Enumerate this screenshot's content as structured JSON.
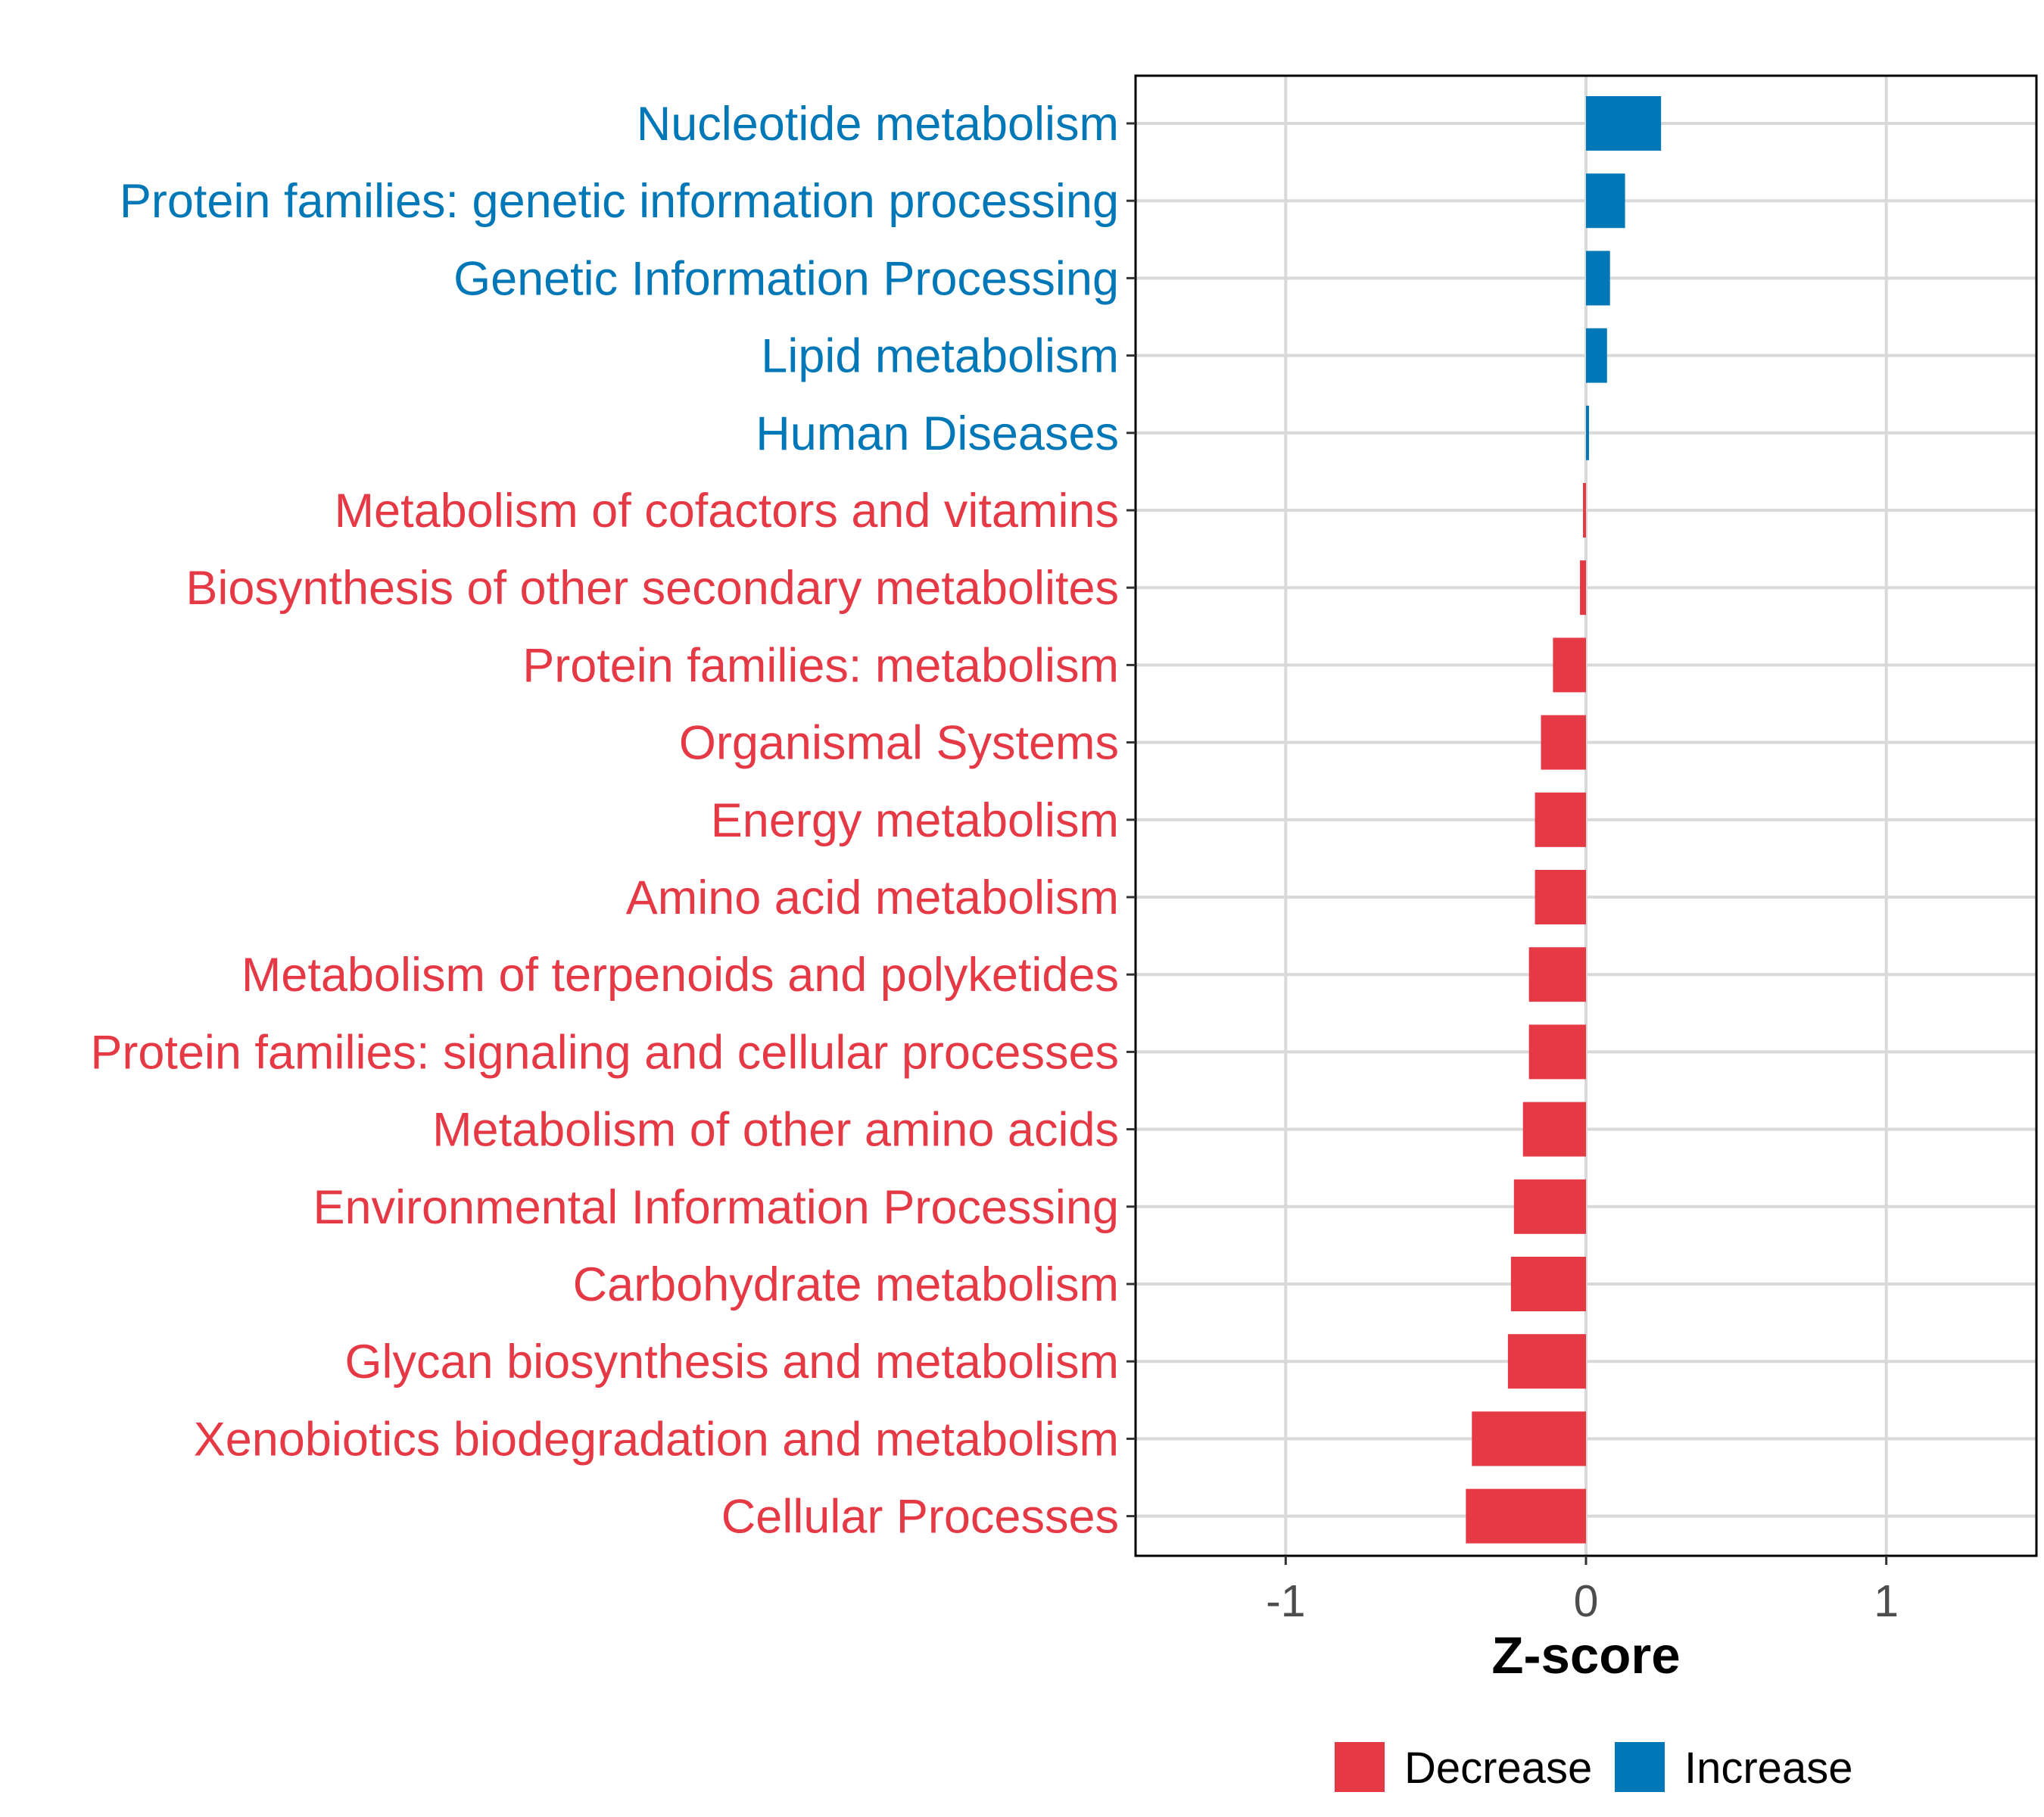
{
  "colors": {
    "decrease": "#e63946",
    "increase": "#0077b6",
    "grid": "#d9d9d9",
    "panel_border": "#000000",
    "tick_text": "#4d4d4d"
  },
  "chart_data": {
    "type": "bar",
    "orientation": "horizontal",
    "title": "",
    "xlabel": "Z-score",
    "ylabel": "",
    "xlim": [
      -1.5,
      1.5
    ],
    "xticks": [
      -1,
      0,
      1
    ],
    "xtick_labels": [
      "-1",
      "0",
      "1"
    ],
    "grid": true,
    "legend_position": "bottom",
    "legend": [
      {
        "name": "Decrease",
        "color_key": "decrease"
      },
      {
        "name": "Increase",
        "color_key": "increase"
      }
    ],
    "bars": [
      {
        "category": "Nucleotide metabolism",
        "value": 0.25,
        "group": "Increase"
      },
      {
        "category": "Protein families: genetic information processing",
        "value": 0.13,
        "group": "Increase"
      },
      {
        "category": "Genetic Information Processing",
        "value": 0.08,
        "group": "Increase"
      },
      {
        "category": "Lipid metabolism",
        "value": 0.07,
        "group": "Increase"
      },
      {
        "category": "Human Diseases",
        "value": 0.01,
        "group": "Increase"
      },
      {
        "category": "Metabolism of cofactors and vitamins",
        "value": -0.01,
        "group": "Decrease"
      },
      {
        "category": "Biosynthesis of other secondary metabolites",
        "value": -0.02,
        "group": "Decrease"
      },
      {
        "category": "Protein families: metabolism",
        "value": -0.11,
        "group": "Decrease"
      },
      {
        "category": "Organismal Systems",
        "value": -0.15,
        "group": "Decrease"
      },
      {
        "category": "Energy metabolism",
        "value": -0.17,
        "group": "Decrease"
      },
      {
        "category": "Amino acid metabolism",
        "value": -0.17,
        "group": "Decrease"
      },
      {
        "category": "Metabolism of terpenoids and polyketides",
        "value": -0.19,
        "group": "Decrease"
      },
      {
        "category": "Protein families: signaling and cellular processes",
        "value": -0.19,
        "group": "Decrease"
      },
      {
        "category": "Metabolism of other amino acids",
        "value": -0.21,
        "group": "Decrease"
      },
      {
        "category": "Environmental Information Processing",
        "value": -0.24,
        "group": "Decrease"
      },
      {
        "category": "Carbohydrate metabolism",
        "value": -0.25,
        "group": "Decrease"
      },
      {
        "category": "Glycan biosynthesis and metabolism",
        "value": -0.26,
        "group": "Decrease"
      },
      {
        "category": "Xenobiotics biodegradation and metabolism",
        "value": -0.38,
        "group": "Decrease"
      },
      {
        "category": "Cellular Processes",
        "value": -0.4,
        "group": "Decrease"
      }
    ]
  }
}
